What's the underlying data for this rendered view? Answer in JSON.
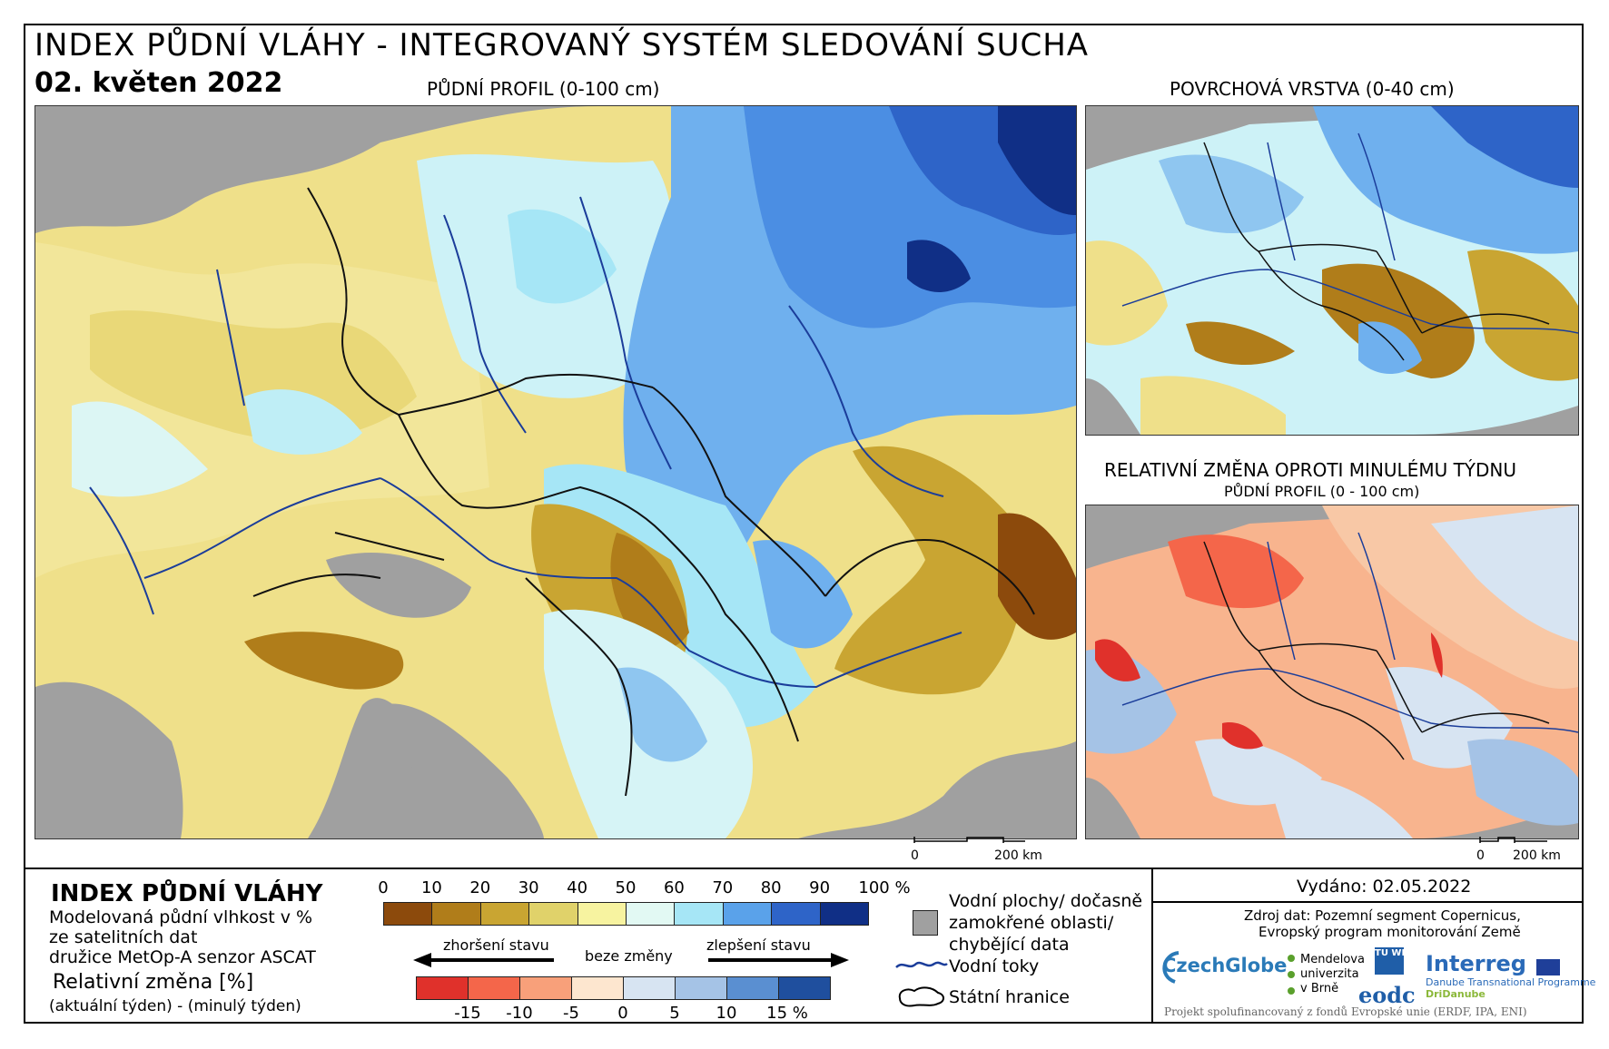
{
  "header": {
    "title": "INDEX PŮDNÍ VLÁHY - INTEGROVANÝ SYSTÉM SLEDOVÁNÍ SUCHA",
    "date": "02. květen 2022"
  },
  "panels": {
    "main": {
      "title": "PŮDNÍ PROFIL (0-100 cm)"
    },
    "surface": {
      "title": "POVRCHOVÁ VRSTVA (0-40 cm)"
    },
    "change": {
      "title": "RELATIVNÍ ZMĚNA OPROTI MINULÉMU TÝDNU",
      "subtitle": "PŮDNÍ PROFIL (0 - 100 cm)"
    }
  },
  "scalebars": {
    "main": {
      "start": "0",
      "end": "200 km"
    },
    "small": {
      "start": "0",
      "end": "200 km"
    }
  },
  "legend": {
    "title": "INDEX PŮDNÍ VLÁHY",
    "desc_line1": "Modelovaná půdní vlhkost v %",
    "desc_line2": "ze satelitních dat",
    "desc_line3": "družice MetOp-A senzor ASCAT",
    "change_title": "Relativní změna [%]",
    "change_formula": "(aktuální týden) - (minulý týden)",
    "index_ticks": [
      "0",
      "10",
      "20",
      "30",
      "40",
      "50",
      "60",
      "70",
      "80",
      "90",
      "100 %"
    ],
    "index_colors": [
      "#8c4a0c",
      "#b07d1a",
      "#c9a532",
      "#e0d26a",
      "#f7f3a0",
      "#e2f9f3",
      "#a6e6f6",
      "#5aa2ea",
      "#2e64c8",
      "#102f86"
    ],
    "arrow_worse": "zhoršení stavu",
    "arrow_none": "beze změny",
    "arrow_better": "zlepšení stavu",
    "change_ticks": [
      "-15",
      "-10",
      "-5",
      "0",
      "5",
      "10",
      "15 %"
    ],
    "change_colors": [
      "#e0312b",
      "#f4664a",
      "#f8a07a",
      "#fde6cf",
      "#d7e4f2",
      "#a5c3e6",
      "#5a8fd1",
      "#1f4f9e"
    ],
    "water_label_1": "Vodní plochy/ dočasně",
    "water_label_2": "zamokřené oblasti/",
    "water_label_3": "chybějící data",
    "rivers_label": "Vodní toky",
    "borders_label": "Státní hranice"
  },
  "info": {
    "issued": "Vydáno: 02.05.2022",
    "source_line1": "Zdroj dat: Pozemní segment Copernicus,",
    "source_line2": "Evropský program monitorování Země",
    "footer": "Projekt spolufinancovaný z fondů Evropské unie (ERDF, IPA, ENI)",
    "logos": {
      "czechglobe": "CzechGlobe",
      "mendel_1": "Mendelova",
      "mendel_2": "univerzita",
      "mendel_3": "v Brně",
      "tuwien": "TU WIEN",
      "eodc": "eodc",
      "interreg": "Interreg",
      "interreg_sub1": "Danube Transnational Programme",
      "interreg_sub2": "DriDanube"
    }
  },
  "colors": {
    "land_gray": "#a0a0a0",
    "river": "#1b3d9a",
    "border": "#111111"
  }
}
